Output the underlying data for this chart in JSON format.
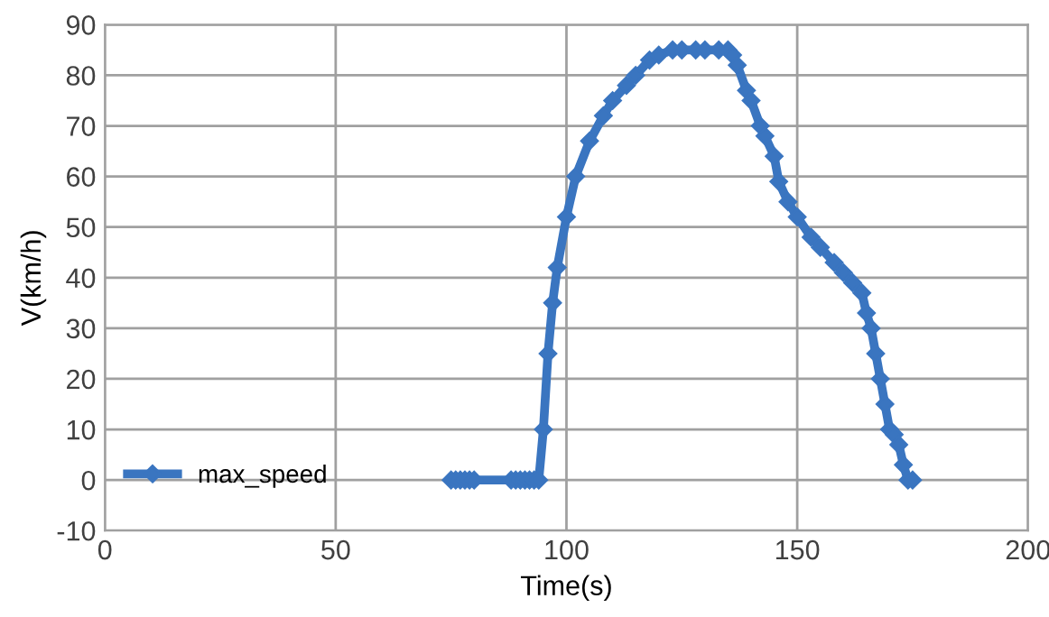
{
  "chart_data": {
    "type": "line",
    "xlabel": "Time(s)",
    "ylabel": "V(km/h)",
    "xlim": [
      0,
      200
    ],
    "xticks": [
      0,
      50,
      100,
      150,
      200
    ],
    "ylim": [
      -10,
      90
    ],
    "yticks": [
      -10,
      0,
      10,
      20,
      30,
      40,
      50,
      60,
      70,
      80,
      90
    ],
    "grid": true,
    "legend": "bottom left",
    "marker": "diamond",
    "line_style": "solid",
    "series": [
      {
        "name": "max_speed",
        "color": "#3a75c0",
        "x": [
          75,
          76,
          77,
          78,
          79,
          80,
          88,
          89,
          90,
          91,
          92,
          93,
          94,
          95,
          96,
          97,
          98,
          100,
          102,
          105,
          108,
          110,
          113,
          115,
          118,
          120,
          123,
          125,
          128,
          130,
          133,
          135,
          136,
          137,
          139,
          140,
          142,
          143,
          145,
          146,
          148,
          150,
          153,
          155,
          158,
          160,
          162,
          164,
          165,
          166,
          167,
          168,
          169,
          170,
          171,
          172,
          173,
          174,
          175
        ],
        "values": [
          0,
          0,
          0,
          0,
          0,
          0,
          0,
          0,
          0,
          0,
          0,
          0,
          0,
          10,
          25,
          35,
          42,
          52,
          60,
          67,
          72,
          75,
          78,
          80,
          83,
          84,
          85,
          85,
          85,
          85,
          85,
          85,
          84,
          82,
          77,
          75,
          70,
          68,
          64,
          59,
          55,
          52,
          48,
          46,
          43,
          41,
          39,
          37,
          33,
          30,
          25,
          20,
          15,
          10,
          9,
          7,
          3,
          0,
          0
        ]
      }
    ]
  }
}
